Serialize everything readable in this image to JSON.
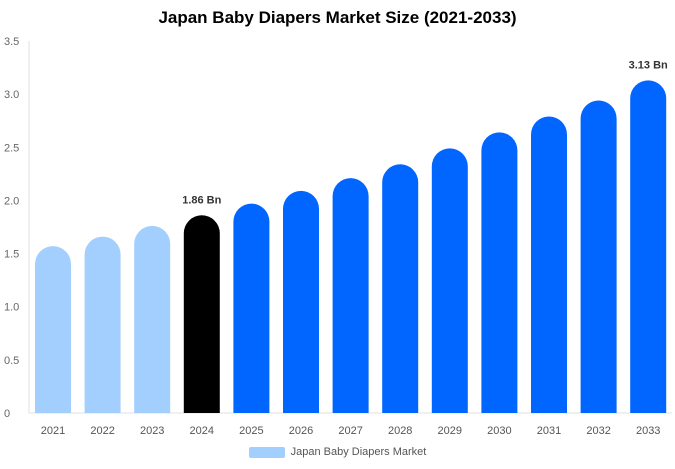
{
  "chart_data": {
    "type": "bar",
    "title": "Japan Baby Diapers Market Size (2021-2033)",
    "categories": [
      "2021",
      "2022",
      "2023",
      "2024",
      "2025",
      "2026",
      "2027",
      "2028",
      "2029",
      "2030",
      "2031",
      "2032",
      "2033"
    ],
    "series": [
      {
        "name": "Japan Baby Diapers Market",
        "values": [
          1.57,
          1.66,
          1.76,
          1.86,
          1.97,
          2.09,
          2.21,
          2.34,
          2.49,
          2.64,
          2.79,
          2.94,
          3.13
        ]
      }
    ],
    "ylim": [
      0,
      3.5
    ],
    "yticks": [
      "0",
      "0.5",
      "1.0",
      "1.5",
      "2.0",
      "2.5",
      "3.0",
      "3.5"
    ],
    "data_labels": [
      {
        "category": "2024",
        "text": "1.86 Bn"
      },
      {
        "category": "2033",
        "text": "3.13 Bn"
      }
    ],
    "bar_colors": {
      "historical": "#a3cfff",
      "base_year": "#000000",
      "forecast": "#0066ff"
    },
    "grid": false,
    "legend": "bottom"
  }
}
